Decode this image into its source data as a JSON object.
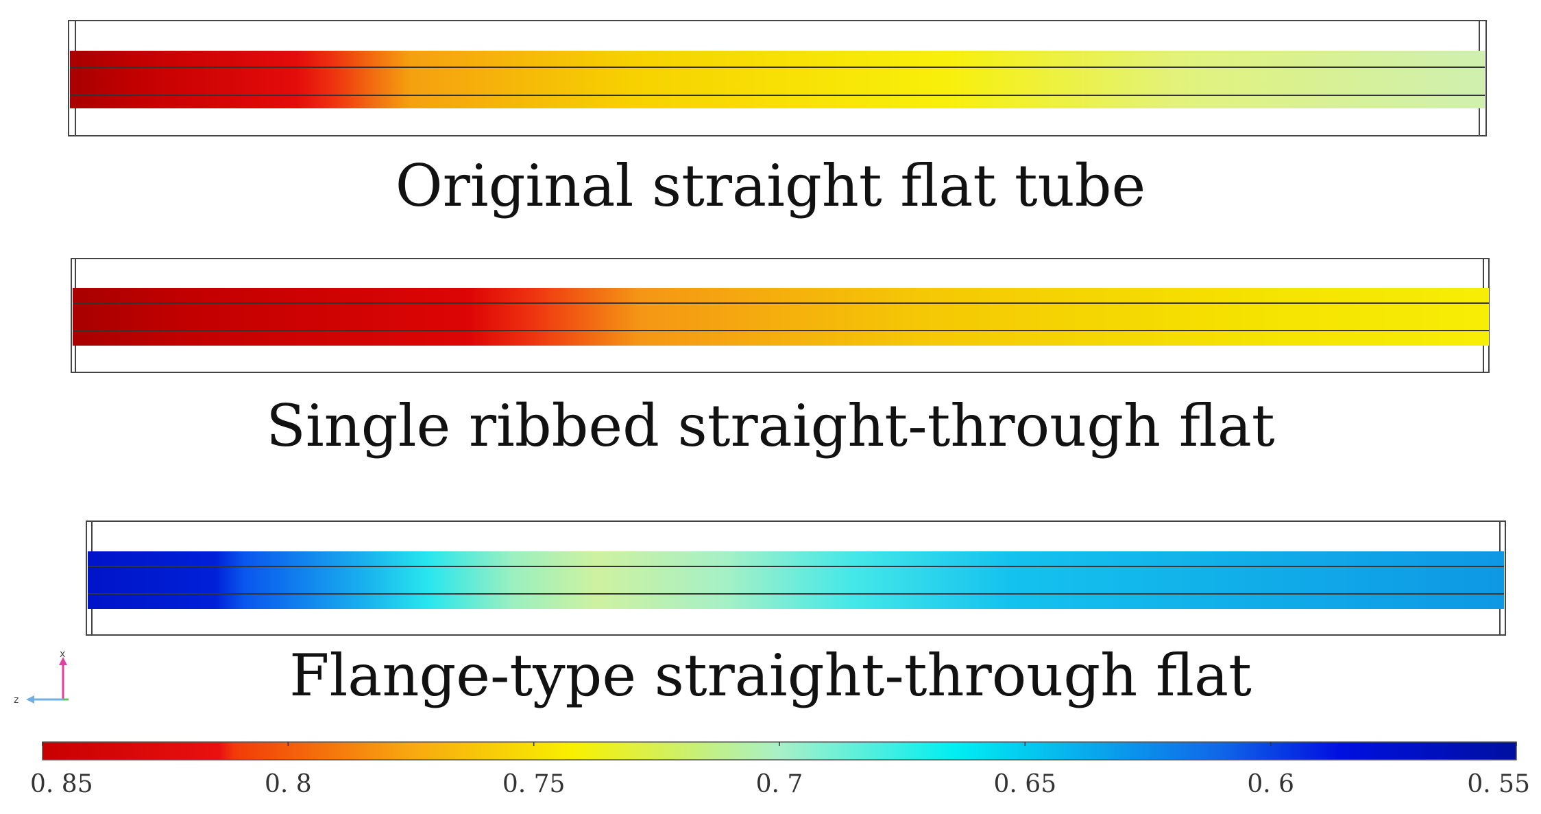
{
  "panels": [
    {
      "caption": "Original straight flat tube",
      "gradient": [
        [
          "0",
          "#a80000"
        ],
        [
          "0.05",
          "#c40000"
        ],
        [
          "0.16",
          "#e40b0b"
        ],
        [
          "0.185",
          "#ee3010"
        ],
        [
          "0.24",
          "#f5a010"
        ],
        [
          "0.4",
          "#f7d200"
        ],
        [
          "0.62",
          "#f8f00a"
        ],
        [
          "0.78",
          "#e2f27a"
        ],
        [
          "1",
          "#cff0b0"
        ]
      ]
    },
    {
      "caption": "Single ribbed straight-through flat",
      "gradient": [
        [
          "0",
          "#a80000"
        ],
        [
          "0.08",
          "#c20000"
        ],
        [
          "0.28",
          "#dd0505"
        ],
        [
          "0.32",
          "#ee2e10"
        ],
        [
          "0.4",
          "#f59615"
        ],
        [
          "0.6",
          "#f5c805"
        ],
        [
          "0.82",
          "#f5e100"
        ],
        [
          "1",
          "#f7ee05"
        ]
      ]
    },
    {
      "caption": "Flange-type straight-through flat",
      "gradient": [
        [
          "0",
          "#0014c8"
        ],
        [
          "0.09",
          "#0020d8"
        ],
        [
          "0.11",
          "#0a55ee"
        ],
        [
          "0.2",
          "#1ab6ee"
        ],
        [
          "0.24",
          "#28e6ee"
        ],
        [
          "0.3",
          "#9bf0c0"
        ],
        [
          "0.36",
          "#cef1a0"
        ],
        [
          "0.45",
          "#a6f0c6"
        ],
        [
          "0.54",
          "#44e8e8"
        ],
        [
          "0.65",
          "#14c2ee"
        ],
        [
          "0.85",
          "#10aae8"
        ],
        [
          "1",
          "#0e98e4"
        ]
      ]
    }
  ],
  "axes_triad": {
    "x_label": "x",
    "z_label": "z"
  },
  "colorbar": {
    "ticks": [
      "0. 85",
      "0. 8",
      "0. 75",
      "0. 7",
      "0. 65",
      "0. 6",
      "0. 55"
    ],
    "tick_values": [
      0.85,
      0.8,
      0.75,
      0.7,
      0.65,
      0.6,
      0.55
    ],
    "range": [
      0.85,
      0.55
    ],
    "gradient": [
      [
        "0",
        "#c80000"
      ],
      [
        "0.12",
        "#ea1010"
      ],
      [
        "0.13",
        "#f23a08"
      ],
      [
        "0.25",
        "#f8a810"
      ],
      [
        "0.36",
        "#f8f000"
      ],
      [
        "0.5",
        "#a8f0c8"
      ],
      [
        "0.62",
        "#00eef2"
      ],
      [
        "0.8",
        "#1066e8"
      ],
      [
        "0.88",
        "#0010e0"
      ],
      [
        "1",
        "#0010a0"
      ]
    ]
  }
}
